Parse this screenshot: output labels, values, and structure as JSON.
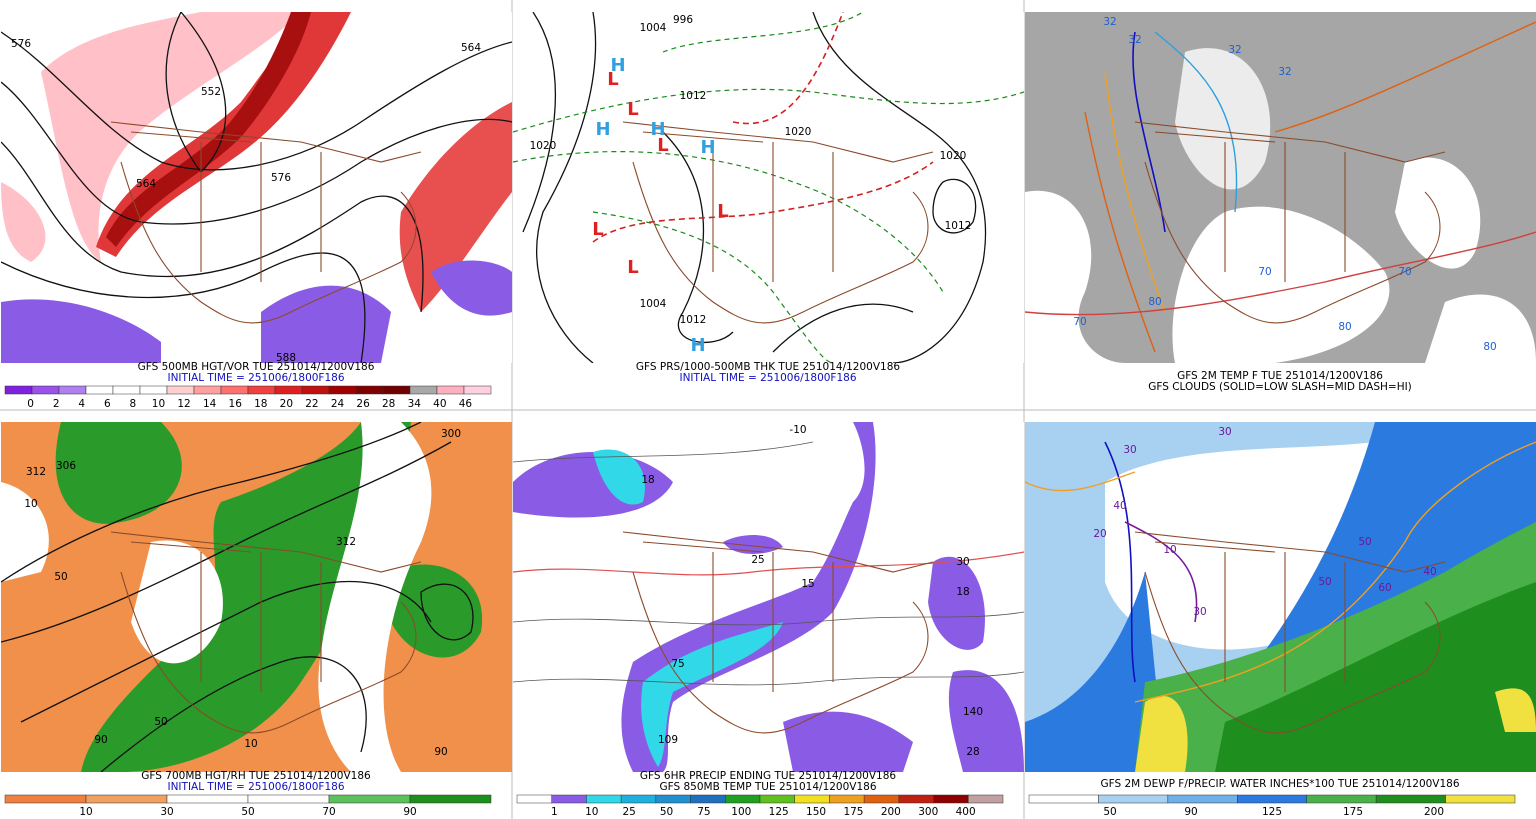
{
  "panels": [
    {
      "captions": [
        {
          "text": "GFS 500MB HGT/VOR TUE 251014/1200V186",
          "color": "#000000"
        },
        {
          "text": "INITIAL TIME = 251006/1800F186",
          "color": "#1010c0"
        }
      ],
      "map_labels": [
        "576",
        "552",
        "564",
        "564",
        "576",
        "588"
      ],
      "colorbar": {
        "colors": [
          "#8020e0",
          "#9a50ea",
          "#b080f0",
          "#ffffff",
          "#ffffff",
          "#ffffff",
          "#ffd0d0",
          "#ffa0a0",
          "#ff7070",
          "#f04040",
          "#e02020",
          "#c01010",
          "#a00000",
          "#800000",
          "#700000",
          "#a8a8a8",
          "#ffb0c0",
          "#ffd0e0"
        ],
        "labels": [
          0,
          2,
          4,
          6,
          8,
          10,
          12,
          14,
          16,
          18,
          20,
          22,
          24,
          26,
          28,
          34,
          40,
          46
        ]
      }
    },
    {
      "captions": [
        {
          "text": "GFS PRS/1000-500MB THK TUE 251014/1200V186",
          "color": "#000000"
        },
        {
          "text": "INITIAL TIME = 251006/1800F186",
          "color": "#1010c0"
        }
      ],
      "map_labels": [
        "1004",
        "996",
        "1020",
        "1012",
        "1020",
        "1020",
        "1012",
        "1004",
        "1012",
        "L",
        "L",
        "L",
        "L",
        "L",
        "L",
        "H",
        "H",
        "H",
        "H",
        "H"
      ]
    },
    {
      "captions": [
        {
          "text": "GFS 2M TEMP F TUE 251014/1200V186",
          "color": "#000000"
        },
        {
          "text": "GFS CLOUDS (SOLID=LOW SLASH=MID DASH=HI)",
          "color": "#000000"
        }
      ],
      "map_labels": [
        "32",
        "32",
        "32",
        "32",
        "70",
        "70",
        "70",
        "80",
        "80",
        "80"
      ]
    },
    {
      "captions": [
        {
          "text": "GFS 700MB HGT/RH TUE 251014/1200V186",
          "color": "#000000"
        },
        {
          "text": "INITIAL TIME = 251006/1800F186",
          "color": "#1010c0"
        }
      ],
      "map_labels": [
        "306",
        "312",
        "300",
        "312",
        "10",
        "50",
        "90",
        "50",
        "10",
        "90"
      ],
      "colorbar": {
        "colors": [
          "#f08040",
          "#f0a060",
          "#ffffff",
          "#ffffff",
          "#5cc05c",
          "#1e8e1e"
        ],
        "labels": [
          10,
          30,
          50,
          70,
          90
        ]
      }
    },
    {
      "captions": [
        {
          "text": "GFS 6HR PRECIP ENDING TUE 251014/1200V186",
          "color": "#000000"
        },
        {
          "text": "GFS 850MB TEMP TUE 251014/1200V186",
          "color": "#000000"
        }
      ],
      "map_labels": [
        "-10",
        "18",
        "15",
        "25",
        "30",
        "18",
        "75",
        "109",
        "140",
        "28"
      ],
      "colorbar": {
        "colors": [
          "#ffffff",
          "#8a5ce6",
          "#30d8e8",
          "#20b0e0",
          "#2090d0",
          "#2070c0",
          "#20a020",
          "#60c020",
          "#f0e020",
          "#f0a020",
          "#e06010",
          "#c02010",
          "#900000",
          "#c0a0a0"
        ],
        "labels": [
          1,
          10,
          25,
          50,
          75,
          100,
          125,
          150,
          175,
          200,
          300,
          400
        ]
      }
    },
    {
      "captions": [
        {
          "text": "GFS 2M DEWP F/PRECIP. WATER INCHES*100 TUE 251014/1200V186",
          "color": "#000000"
        }
      ],
      "map_labels": [
        "30",
        "30",
        "40",
        "20",
        "10",
        "30",
        "50",
        "60",
        "50",
        "40"
      ],
      "colorbar": {
        "colors": [
          "#ffffff",
          "#a8d0f0",
          "#70b0e8",
          "#2a7ae0",
          "#4ab04a",
          "#1e8e1e",
          "#f0e040"
        ],
        "labels": [
          50,
          90,
          125,
          175,
          200
        ]
      }
    }
  ]
}
